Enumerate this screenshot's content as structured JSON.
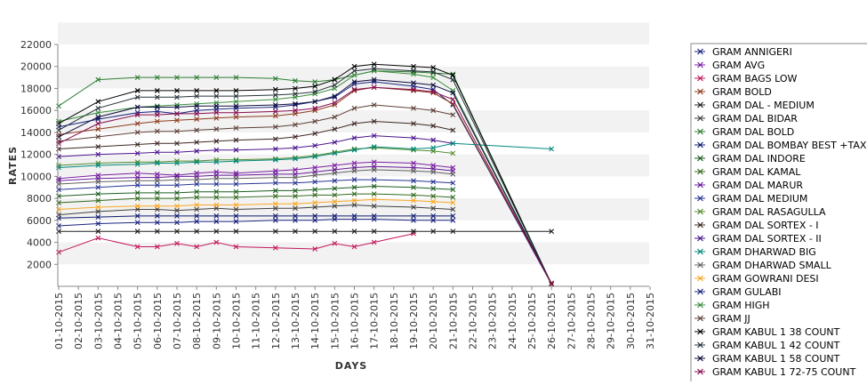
{
  "chart_data": {
    "type": "line",
    "xlabel": "DAYS",
    "ylabel": "RATES",
    "ylim": [
      0,
      22000
    ],
    "yticks": [
      2000,
      4000,
      6000,
      8000,
      10000,
      12000,
      14000,
      16000,
      18000,
      20000,
      22000
    ],
    "categories": [
      "01-10-2015",
      "02-10-2015",
      "03-10-2015",
      "04-10-2015",
      "05-10-2015",
      "06-10-2015",
      "07-10-2015",
      "08-10-2015",
      "09-10-2015",
      "10-10-2015",
      "11-10-2015",
      "12-10-2015",
      "13-10-2015",
      "14-10-2015",
      "15-10-2015",
      "16-10-2015",
      "17-10-2015",
      "18-10-2015",
      "19-10-2015",
      "20-10-2015",
      "21-10-2015",
      "22-10-2015",
      "23-10-2015",
      "24-10-2015",
      "25-10-2015",
      "26-10-2015",
      "27-10-2015",
      "28-10-2015",
      "29-10-2015",
      "30-10-2015",
      "31-10-2015"
    ],
    "grid": "alternating horizontal bands",
    "legend_position": "right",
    "series": [
      {
        "name": "GRAM ANNIGERI",
        "color": "#1a237e",
        "values": [
          14500,
          null,
          15200,
          null,
          15800,
          15900,
          15700,
          16000,
          16100,
          16200,
          null,
          16300,
          16500,
          16800,
          17200,
          18400,
          18600,
          null,
          18200,
          17900,
          16500,
          null,
          null,
          null,
          null,
          200,
          null,
          null,
          null,
          null,
          null
        ]
      },
      {
        "name": "GRAM AVG",
        "color": "#7b1fa2",
        "values": [
          9800,
          null,
          10100,
          null,
          10300,
          10200,
          10100,
          10300,
          10400,
          10300,
          null,
          10500,
          10600,
          10800,
          11000,
          11200,
          11300,
          null,
          11200,
          11000,
          10800,
          null,
          null,
          null,
          null,
          null,
          null,
          null,
          null,
          null,
          null
        ]
      },
      {
        "name": "GRAM BAGS LOW",
        "color": "#c2185b",
        "values": [
          3100,
          null,
          4400,
          null,
          3600,
          3600,
          3900,
          3600,
          4000,
          3600,
          null,
          3500,
          null,
          3400,
          3900,
          3600,
          4000,
          null,
          4800,
          null,
          null,
          null,
          null,
          null,
          null,
          null,
          null,
          null,
          null,
          null,
          null
        ]
      },
      {
        "name": "GRAM BOLD",
        "color": "#8d3b1f",
        "values": [
          13800,
          null,
          14300,
          null,
          14800,
          15000,
          15100,
          15200,
          15300,
          15400,
          null,
          15500,
          15700,
          16000,
          16500,
          17800,
          18100,
          null,
          17800,
          17600,
          16600,
          null,
          null,
          null,
          null,
          300,
          null,
          null,
          null,
          null,
          null
        ]
      },
      {
        "name": "GRAM DAL - MEDIUM",
        "color": "#212121",
        "values": [
          5000,
          null,
          5000,
          null,
          5000,
          5000,
          5000,
          5000,
          5000,
          5000,
          null,
          5000,
          5000,
          5000,
          5000,
          5000,
          5000,
          null,
          5000,
          5000,
          5000,
          null,
          null,
          null,
          null,
          5000,
          null,
          null,
          null,
          null,
          null
        ]
      },
      {
        "name": "GRAM DAL BIDAR",
        "color": "#424242",
        "values": [
          6500,
          null,
          6800,
          null,
          7000,
          7000,
          6900,
          7000,
          7100,
          7000,
          null,
          7100,
          7100,
          7200,
          7300,
          7400,
          7300,
          null,
          7200,
          7100,
          7000,
          null,
          null,
          null,
          null,
          null,
          null,
          null,
          null,
          null,
          null
        ]
      },
      {
        "name": "GRAM DAL BOLD",
        "color": "#2e7d32",
        "values": [
          16400,
          null,
          18800,
          null,
          19000,
          19000,
          19000,
          19000,
          19000,
          19000,
          null,
          18900,
          18700,
          18600,
          18800,
          19200,
          19600,
          null,
          19500,
          19400,
          19300,
          null,
          null,
          null,
          null,
          200,
          null,
          null,
          null,
          null,
          null
        ]
      },
      {
        "name": "GRAM DAL BOMBAY BEST +TAX",
        "color": "#0d1b6e",
        "values": [
          6200,
          null,
          6300,
          null,
          6400,
          6400,
          6400,
          6400,
          6400,
          6400,
          null,
          6400,
          6400,
          6400,
          6400,
          6400,
          6400,
          null,
          6400,
          6400,
          6400,
          null,
          null,
          null,
          null,
          null,
          null,
          null,
          null,
          null,
          null
        ]
      },
      {
        "name": "GRAM DAL INDORE",
        "color": "#1b5e20",
        "values": [
          8200,
          null,
          8400,
          null,
          8500,
          8500,
          8500,
          8600,
          8600,
          8600,
          null,
          8700,
          8700,
          8800,
          8900,
          9000,
          9100,
          null,
          9000,
          8900,
          8800,
          null,
          null,
          null,
          null,
          null,
          null,
          null,
          null,
          null,
          null
        ]
      },
      {
        "name": "GRAM DAL KAMAL",
        "color": "#33691e",
        "values": [
          7600,
          null,
          7800,
          null,
          8000,
          8000,
          8000,
          8100,
          8100,
          8100,
          null,
          8200,
          8200,
          8300,
          8300,
          8400,
          8400,
          null,
          8300,
          8200,
          8100,
          null,
          null,
          null,
          null,
          null,
          null,
          null,
          null,
          null,
          null
        ]
      },
      {
        "name": "GRAM DAL MARUR",
        "color": "#6a1b9a",
        "values": [
          9600,
          null,
          9800,
          null,
          9900,
          9900,
          10000,
          10000,
          10100,
          10100,
          null,
          10200,
          10200,
          10400,
          10600,
          10800,
          10900,
          null,
          10800,
          10700,
          10500,
          null,
          null,
          null,
          null,
          null,
          null,
          null,
          null,
          null,
          null
        ]
      },
      {
        "name": "GRAM DAL MEDIUM",
        "color": "#283593",
        "values": [
          8800,
          null,
          9000,
          null,
          9200,
          9200,
          9200,
          9300,
          9300,
          9300,
          null,
          9400,
          9400,
          9500,
          9600,
          9700,
          9700,
          null,
          9600,
          9500,
          9400,
          null,
          null,
          null,
          null,
          null,
          null,
          null,
          null,
          null,
          null
        ]
      },
      {
        "name": "GRAM DAL RASAGULLA",
        "color": "#558b2f",
        "values": [
          11000,
          null,
          11200,
          null,
          11300,
          11300,
          11400,
          11400,
          11500,
          11500,
          null,
          11600,
          11700,
          11900,
          12200,
          12500,
          12600,
          null,
          12400,
          12300,
          12100,
          null,
          null,
          null,
          null,
          null,
          null,
          null,
          null,
          null,
          null
        ]
      },
      {
        "name": "GRAM DAL SORTEX  - I",
        "color": "#3e2723",
        "values": [
          12500,
          null,
          12700,
          null,
          12900,
          13000,
          13000,
          13100,
          13200,
          13300,
          null,
          13400,
          13600,
          13900,
          14300,
          14800,
          15000,
          null,
          14800,
          14600,
          14200,
          null,
          null,
          null,
          null,
          null,
          null,
          null,
          null,
          null,
          null
        ]
      },
      {
        "name": "GRAM DAL SORTEX - II",
        "color": "#4a148c",
        "values": [
          11800,
          null,
          12000,
          null,
          12100,
          12200,
          12200,
          12300,
          12400,
          12400,
          null,
          12500,
          12600,
          12800,
          13100,
          13500,
          13700,
          null,
          13500,
          13300,
          13000,
          null,
          null,
          null,
          null,
          null,
          null,
          null,
          null,
          null,
          null
        ]
      },
      {
        "name": "GRAM DHARWAD BIG",
        "color": "#00897b",
        "values": [
          10800,
          null,
          11000,
          null,
          11100,
          11200,
          11200,
          11300,
          11300,
          11400,
          null,
          11500,
          11600,
          11800,
          12100,
          12400,
          12700,
          null,
          12500,
          12600,
          13000,
          null,
          null,
          null,
          null,
          12500,
          null,
          null,
          null,
          null,
          null
        ]
      },
      {
        "name": "GRAM DHARWAD SMALL",
        "color": "#616161",
        "values": [
          9300,
          null,
          9500,
          null,
          9600,
          9600,
          9700,
          9700,
          9800,
          9800,
          null,
          9900,
          9900,
          10100,
          10300,
          10500,
          10600,
          null,
          10500,
          10400,
          10200,
          null,
          null,
          null,
          null,
          null,
          null,
          null,
          null,
          null,
          null
        ]
      },
      {
        "name": "GRAM GOWRANI DESI",
        "color": "#f9a825",
        "values": [
          7000,
          null,
          7200,
          null,
          7300,
          7300,
          7300,
          7400,
          7400,
          7400,
          null,
          7500,
          7500,
          7600,
          7700,
          7800,
          7900,
          null,
          7800,
          7700,
          7600,
          null,
          null,
          null,
          null,
          null,
          null,
          null,
          null,
          null,
          null
        ]
      },
      {
        "name": "GRAM GULABI",
        "color": "#1a237e",
        "values": [
          5500,
          null,
          5700,
          null,
          5800,
          5800,
          5800,
          5900,
          5900,
          5900,
          null,
          6000,
          6000,
          6000,
          6100,
          6100,
          6100,
          null,
          6000,
          6000,
          6000,
          null,
          null,
          null,
          null,
          null,
          null,
          null,
          null,
          null,
          null
        ]
      },
      {
        "name": "GRAM HIGH",
        "color": "#388e3c",
        "values": [
          15000,
          null,
          15800,
          null,
          16300,
          16400,
          16500,
          16600,
          16700,
          16800,
          null,
          17000,
          17200,
          17500,
          18000,
          19200,
          19600,
          null,
          19300,
          19000,
          17800,
          null,
          null,
          null,
          null,
          200,
          null,
          null,
          null,
          null,
          null
        ]
      },
      {
        "name": "GRAM JJ",
        "color": "#5d4037",
        "values": [
          13200,
          null,
          13600,
          null,
          14000,
          14100,
          14100,
          14200,
          14300,
          14400,
          null,
          14500,
          14700,
          15000,
          15400,
          16200,
          16500,
          null,
          16200,
          16000,
          15600,
          null,
          null,
          null,
          null,
          null,
          null,
          null,
          null,
          null,
          null
        ]
      },
      {
        "name": "GRAM KABUL 1 38 COUNT",
        "color": "#000000",
        "values": [
          14800,
          null,
          16800,
          null,
          17800,
          17800,
          17800,
          17800,
          17800,
          17800,
          null,
          17900,
          18000,
          18200,
          18800,
          20000,
          20200,
          null,
          20000,
          19900,
          19200,
          null,
          null,
          null,
          null,
          200,
          null,
          null,
          null,
          null,
          null
        ]
      },
      {
        "name": "GRAM KABUL 1 42 COUNT",
        "color": "#263238",
        "values": [
          14200,
          null,
          16200,
          null,
          17200,
          17200,
          17200,
          17300,
          17300,
          17300,
          null,
          17400,
          17500,
          17700,
          18300,
          19600,
          19800,
          null,
          19600,
          19500,
          18800,
          null,
          null,
          null,
          null,
          200,
          null,
          null,
          null,
          null,
          null
        ]
      },
      {
        "name": "GRAM KABUL 1 58 COUNT",
        "color": "#0d0d3d",
        "values": [
          13600,
          null,
          15400,
          null,
          16300,
          16300,
          16300,
          16400,
          16400,
          16400,
          null,
          16500,
          16600,
          16800,
          17300,
          18600,
          18800,
          null,
          18500,
          18300,
          17600,
          null,
          null,
          null,
          null,
          200,
          null,
          null,
          null,
          null,
          null
        ]
      },
      {
        "name": "GRAM KABUL 1 72-75 COUNT",
        "color": "#880e4f",
        "values": [
          13000,
          null,
          14800,
          null,
          15600,
          15600,
          15700,
          15700,
          15800,
          15800,
          null,
          15900,
          16000,
          16200,
          16700,
          17900,
          18100,
          null,
          17900,
          17700,
          17000,
          null,
          null,
          null,
          null,
          200,
          null,
          null,
          null,
          null,
          null
        ]
      }
    ]
  }
}
